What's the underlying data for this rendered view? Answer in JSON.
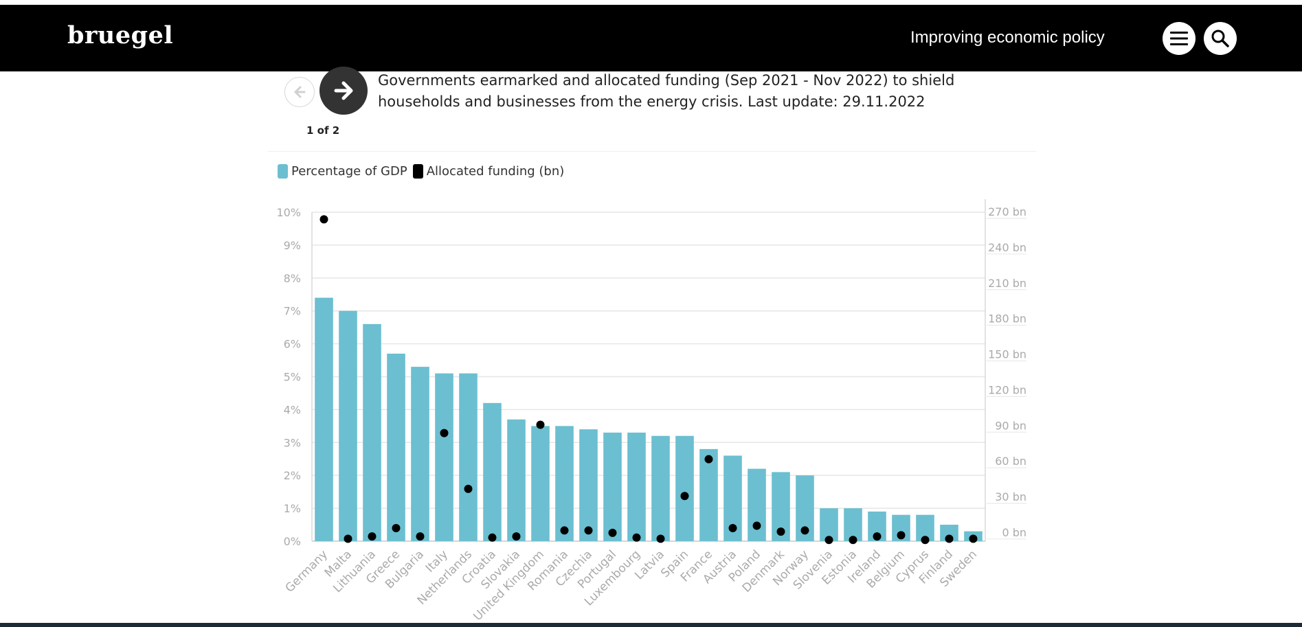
{
  "header": {
    "logo": "bruegel",
    "tagline": "Improving economic policy",
    "menu_icon": "hamburger-menu-icon",
    "search_icon": "search-icon"
  },
  "navigation": {
    "pager": "1 of 2",
    "description": "Governments earmarked and allocated funding (Sep 2021 - Nov 2022) to shield households and businesses from the energy crisis. Last update: 29.11.2022"
  },
  "colors": {
    "bar": "#6bbfd0",
    "dot": "#000000",
    "grid": "#e6e6e6",
    "axis_text": "#aaaaaa"
  },
  "chart_data": {
    "type": "bar",
    "legend": [
      "Percentage of GDP",
      "Allocated funding (bn)"
    ],
    "legend_position": "top-left",
    "grid": true,
    "categories": [
      "Germany",
      "Malta",
      "Lithuania",
      "Greece",
      "Bulgaria",
      "Italy",
      "Netherlands",
      "Croatia",
      "Slovakia",
      "United Kingdom",
      "Romania",
      "Czechia",
      "Portugal",
      "Luxembourg",
      "Latvia",
      "Spain",
      "France",
      "Austria",
      "Poland",
      "Denmark",
      "Norway",
      "Slovenia",
      "Estonia",
      "Ireland",
      "Belgium",
      "Cyprus",
      "Finland",
      "Sweden"
    ],
    "series": [
      {
        "name": "Percentage of GDP",
        "type": "bar",
        "axis": "left",
        "values": [
          7.4,
          7.0,
          6.6,
          5.7,
          5.3,
          5.1,
          5.1,
          4.2,
          3.7,
          3.5,
          3.5,
          3.4,
          3.3,
          3.3,
          3.2,
          3.2,
          2.8,
          2.6,
          2.2,
          2.1,
          2.0,
          1.0,
          1.0,
          0.9,
          0.8,
          0.8,
          0.5,
          0.3
        ]
      },
      {
        "name": "Allocated funding (bn)",
        "type": "scatter",
        "axis": "right",
        "values": [
          264,
          -5,
          -3,
          4,
          -3,
          84,
          37,
          -4,
          -3,
          91,
          2,
          2,
          0,
          -4,
          -5,
          31,
          62,
          4,
          6,
          1,
          2,
          -6,
          -6,
          -3,
          -2,
          -6,
          -5,
          -5
        ]
      }
    ],
    "y_left": {
      "range": [
        0,
        10
      ],
      "ticks": [
        "0%",
        "1%",
        "2%",
        "3%",
        "4%",
        "5%",
        "6%",
        "7%",
        "8%",
        "9%",
        "10%"
      ]
    },
    "y_right": {
      "range": [
        -7,
        270
      ],
      "ticks": [
        "0 bn",
        "30 bn",
        "60 bn",
        "90 bn",
        "120 bn",
        "150 bn",
        "180 bn",
        "210 bn",
        "240 bn",
        "270 bn"
      ],
      "tick_values": [
        0,
        30,
        60,
        90,
        120,
        150,
        180,
        210,
        240,
        270
      ]
    }
  }
}
